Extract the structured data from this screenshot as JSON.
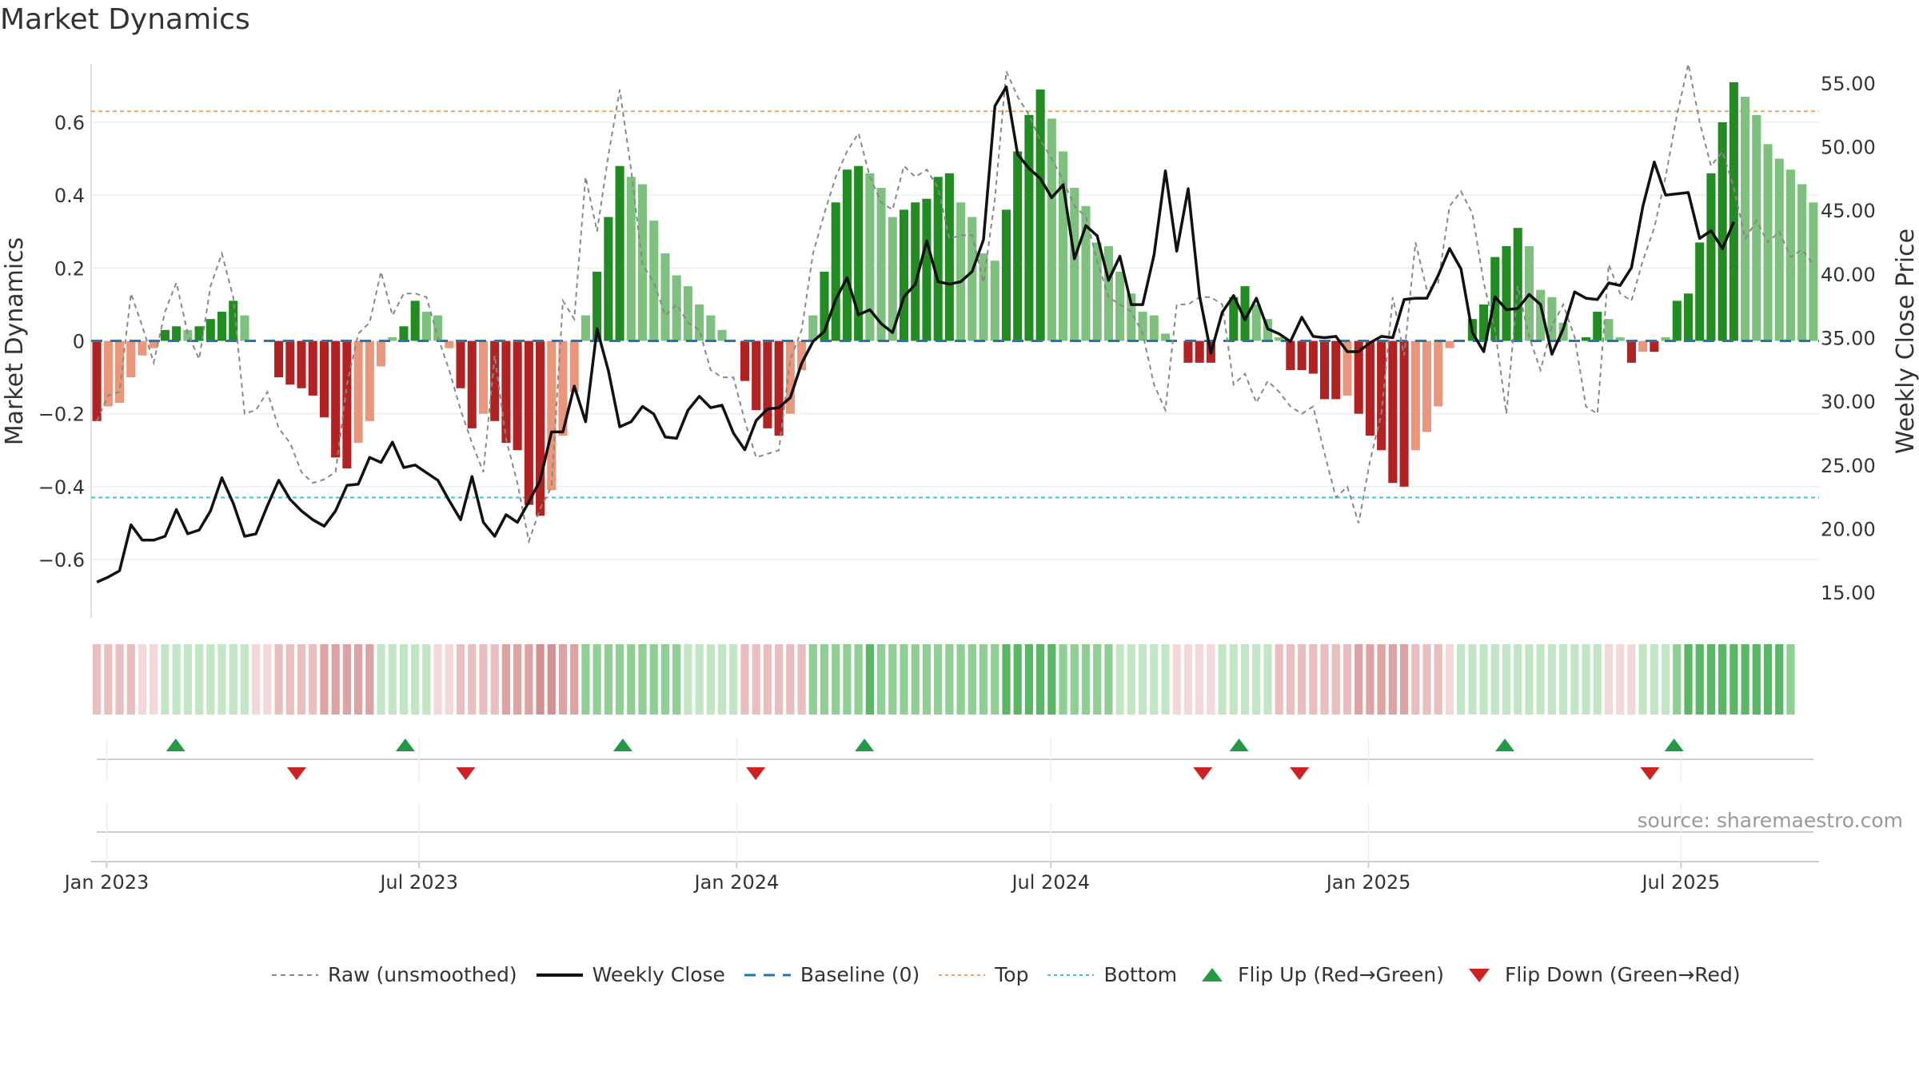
{
  "title": "Market Dynamics",
  "source_text": "source: sharemaestro.com",
  "colors": {
    "strong_green": "#228b22",
    "light_green": "#7ec07e",
    "strong_red": "#b22222",
    "light_red": "#e9967a",
    "close_line": "#111111",
    "raw_line": "#888888",
    "baseline": "#1f77b4",
    "top": "#f4a460",
    "bottom": "#40c4d8",
    "flip_up": "#229944",
    "flip_down": "#cc2222"
  },
  "legend": [
    {
      "key": "raw",
      "label": "Raw (unsmoothed)"
    },
    {
      "key": "close",
      "label": "Weekly Close"
    },
    {
      "key": "baseline",
      "label": "Baseline (0)"
    },
    {
      "key": "top",
      "label": "Top"
    },
    {
      "key": "bottom",
      "label": "Bottom"
    },
    {
      "key": "flip_up",
      "label": "Flip Up (Red→Green)"
    },
    {
      "key": "flip_down",
      "label": "Flip Down (Green→Red)"
    }
  ],
  "chart_data": {
    "type": "bar",
    "ylabel_left": "Market Dynamics",
    "ylabel_right": "Weekly Close Price",
    "ylim_left": [
      -0.76,
      0.76
    ],
    "ylim_right": [
      13.0,
      56.5
    ],
    "yticks_left": [
      0.6,
      0.4,
      0.2,
      0,
      -0.2,
      -0.4,
      -0.6
    ],
    "yticks_left_labels": [
      "0.6",
      "0.4",
      "0.2",
      "0",
      "−0.2",
      "−0.4",
      "−0.6"
    ],
    "yticks_right": [
      55,
      50,
      45,
      40,
      35,
      30,
      25,
      20,
      15
    ],
    "yticks_right_labels": [
      "55.00",
      "50.00",
      "45.00",
      "40.00",
      "35.00",
      "30.00",
      "25.00",
      "20.00",
      "15.00"
    ],
    "x_start": "2022-12-23",
    "x_end": "2025-09-19",
    "x_ticks": [
      {
        "date": "2023-01-01",
        "label": "Jan 2023"
      },
      {
        "date": "2023-07-01",
        "label": "Jul 2023"
      },
      {
        "date": "2024-01-01",
        "label": "Jan 2024"
      },
      {
        "date": "2024-07-01",
        "label": "Jul 2024"
      },
      {
        "date": "2025-01-01",
        "label": "Jan 2025"
      },
      {
        "date": "2025-07-01",
        "label": "Jul 2025"
      }
    ],
    "top_level": 0.63,
    "bottom_level": -0.43,
    "baseline": 0,
    "smoothed": [
      -0.22,
      -0.18,
      -0.17,
      -0.1,
      -0.04,
      -0.02,
      0.03,
      0.04,
      0.03,
      0.04,
      0.06,
      0.08,
      0.11,
      0.07,
      0,
      0,
      -0.1,
      -0.12,
      -0.13,
      -0.15,
      -0.21,
      -0.32,
      -0.35,
      -0.28,
      -0.22,
      -0.07,
      0.01,
      0.04,
      0.11,
      0.08,
      0.07,
      -0.02,
      -0.13,
      -0.24,
      -0.2,
      -0.22,
      -0.28,
      -0.3,
      -0.45,
      -0.48,
      -0.41,
      -0.26,
      -0.14,
      0.07,
      0.19,
      0.34,
      0.48,
      0.45,
      0.43,
      0.33,
      0.24,
      0.18,
      0.15,
      0.1,
      0.07,
      0.03,
      0,
      -0.11,
      -0.19,
      -0.24,
      -0.26,
      -0.2,
      -0.08,
      0.07,
      0.19,
      0.38,
      0.47,
      0.48,
      0.46,
      0.42,
      0.34,
      0.36,
      0.38,
      0.39,
      0.45,
      0.46,
      0.38,
      0.34,
      0.24,
      0.22,
      0.36,
      0.52,
      0.62,
      0.69,
      0.61,
      0.52,
      0.42,
      0.37,
      0.27,
      0.26,
      0.19,
      0.13,
      0.08,
      0.07,
      0.02,
      0,
      -0.06,
      -0.06,
      -0.06,
      0,
      0.12,
      0.15,
      0.1,
      0.06,
      0.01,
      -0.08,
      -0.08,
      -0.09,
      -0.16,
      -0.16,
      -0.15,
      -0.2,
      -0.26,
      -0.3,
      -0.39,
      -0.4,
      -0.3,
      -0.25,
      -0.18,
      -0.02,
      0,
      0.06,
      0.1,
      0.23,
      0.26,
      0.31,
      0.26,
      0.14,
      0.12,
      0.05,
      0,
      0.01,
      0.08,
      0.06,
      0.01,
      -0.06,
      -0.03,
      -0.03,
      0.01,
      0.11,
      0.13,
      0.27,
      0.46,
      0.6,
      0.71,
      0.67,
      0.62,
      0.54,
      0.5,
      0.47,
      0.43,
      0.38
    ],
    "raw": [
      -0.22,
      -0.15,
      -0.14,
      0.13,
      0.04,
      -0.06,
      0.08,
      0.16,
      0.02,
      -0.05,
      0.15,
      0.24,
      0.12,
      -0.2,
      -0.19,
      -0.14,
      -0.24,
      -0.28,
      -0.36,
      -0.39,
      -0.38,
      -0.36,
      -0.12,
      0.02,
      0.05,
      0.19,
      0.07,
      0.13,
      0.13,
      0.12,
      0.01,
      -0.08,
      -0.19,
      -0.28,
      -0.36,
      -0.04,
      -0.27,
      -0.39,
      -0.55,
      -0.46,
      -0.4,
      0.11,
      0.06,
      0.45,
      0.3,
      0.51,
      0.69,
      0.47,
      0.21,
      0.16,
      0.07,
      0.1,
      0.05,
      0.03,
      -0.08,
      -0.1,
      -0.1,
      -0.22,
      -0.32,
      -0.31,
      -0.3,
      -0.05,
      0.03,
      0.24,
      0.35,
      0.45,
      0.52,
      0.57,
      0.45,
      0.38,
      0.36,
      0.48,
      0.45,
      0.47,
      0.42,
      0.28,
      0.29,
      0.29,
      0.16,
      0.39,
      0.74,
      0.67,
      0.62,
      0.55,
      0.5,
      0.44,
      0.37,
      0.34,
      0.22,
      0.12,
      0.1,
      0.08,
      0.02,
      -0.12,
      -0.19,
      0.1,
      0.1,
      0.12,
      0.12,
      0.1,
      -0.12,
      -0.09,
      -0.17,
      -0.11,
      -0.14,
      -0.18,
      -0.2,
      -0.18,
      -0.31,
      -0.43,
      -0.4,
      -0.5,
      -0.33,
      -0.2,
      0.12,
      -0.04,
      0.27,
      0.14,
      0.16,
      0.37,
      0.41,
      0.35,
      0.16,
      0.03,
      -0.2,
      0.15,
      0.01,
      -0.08,
      0.04,
      0.1,
      0.01,
      -0.18,
      -0.2,
      0.21,
      0.13,
      0.11,
      0.22,
      0.31,
      0.45,
      0.62,
      0.76,
      0.6,
      0.48,
      0.52,
      0.42,
      0.28,
      0.33,
      0.27,
      0.3,
      0.23,
      0.25,
      0.21
    ],
    "close": [
      15.8,
      16.2,
      16.7,
      20.3,
      19.1,
      19.1,
      19.4,
      21.5,
      19.6,
      19.9,
      21.4,
      24.0,
      22.0,
      19.4,
      19.6,
      21.8,
      23.8,
      22.3,
      21.4,
      20.7,
      20.2,
      21.4,
      23.4,
      23.5,
      25.6,
      25.2,
      26.8,
      24.8,
      25.0,
      24.4,
      23.8,
      22.2,
      20.7,
      24.1,
      20.5,
      19.4,
      21.1,
      20.5,
      22.1,
      23.8,
      27.6,
      27.6,
      31.2,
      28.4,
      35.7,
      32.4,
      28.0,
      28.4,
      29.6,
      29.0,
      27.2,
      27.1,
      29.3,
      30.4,
      29.5,
      29.7,
      27.5,
      26.2,
      28.5,
      29.4,
      29.5,
      30.3,
      33.0,
      34.7,
      35.5,
      38.0,
      39.7,
      36.8,
      37.2,
      36.1,
      35.4,
      38.2,
      39.2,
      42.6,
      39.4,
      39.2,
      39.4,
      40.2,
      42.7,
      53.2,
      54.7,
      49.4,
      48.3,
      47.5,
      46.0,
      47.0,
      41.2,
      43.8,
      43.0,
      39.5,
      41.4,
      37.6,
      37.6,
      41.5,
      48.1,
      41.8,
      46.7,
      38.3,
      33.8,
      37.0,
      38.3,
      36.4,
      38.1,
      35.7,
      35.3,
      34.7,
      36.6,
      35.1,
      35.0,
      35.1,
      33.9,
      33.9,
      34.6,
      35.1,
      35.0,
      38.0,
      38.1,
      38.1,
      39.9,
      42.0,
      40.4,
      35.4,
      33.9,
      38.2,
      37.2,
      37.3,
      38.4,
      37.6,
      33.7,
      35.7,
      38.6,
      38.1,
      38.0,
      39.3,
      39.1,
      40.5,
      45.3,
      48.8,
      46.2,
      46.3,
      46.4,
      42.8,
      43.4,
      42.0,
      44.1
    ]
  },
  "regime_strip": {
    "levels": [
      -2,
      -2,
      -2,
      -2,
      -1,
      -1,
      1,
      1,
      1,
      1,
      1,
      1,
      1,
      1,
      -1,
      -1,
      -2,
      -2,
      -2,
      -2,
      -3,
      -3,
      -3,
      -3,
      -3,
      1,
      1,
      1,
      1,
      1,
      -1,
      -1,
      -2,
      -2,
      -2,
      -2,
      -3,
      -3,
      -3,
      -4,
      -4,
      -3,
      -3,
      2,
      2,
      2,
      2,
      2,
      2,
      2,
      2,
      2,
      1,
      1,
      1,
      1,
      1,
      -2,
      -2,
      -2,
      -2,
      -2,
      -2,
      2,
      2,
      2,
      2,
      2,
      3,
      2,
      2,
      2,
      2,
      2,
      2,
      2,
      2,
      2,
      2,
      2,
      3,
      3,
      3,
      3,
      3,
      2,
      2,
      2,
      2,
      2,
      1,
      1,
      1,
      1,
      1,
      -1,
      -1,
      -1,
      -1,
      1,
      1,
      1,
      1,
      1,
      -2,
      -2,
      -2,
      -2,
      -2,
      -2,
      -2,
      -3,
      -3,
      -3,
      -3,
      -3,
      -2,
      -2,
      -2,
      -1,
      1,
      1,
      1,
      1,
      1,
      1,
      1,
      1,
      1,
      1,
      1,
      1,
      1,
      -1,
      -1,
      -1,
      1,
      1,
      1,
      2,
      3,
      3,
      3,
      3,
      3,
      3,
      3,
      3,
      3,
      2
    ]
  },
  "flips": {
    "up": [
      "2023-02-10",
      "2023-06-23",
      "2023-10-27",
      "2024-03-15",
      "2024-10-18",
      "2025-03-21",
      "2025-06-27"
    ],
    "down": [
      "2023-04-21",
      "2023-07-28",
      "2024-01-12",
      "2024-09-27",
      "2024-11-22",
      "2025-06-13"
    ]
  }
}
